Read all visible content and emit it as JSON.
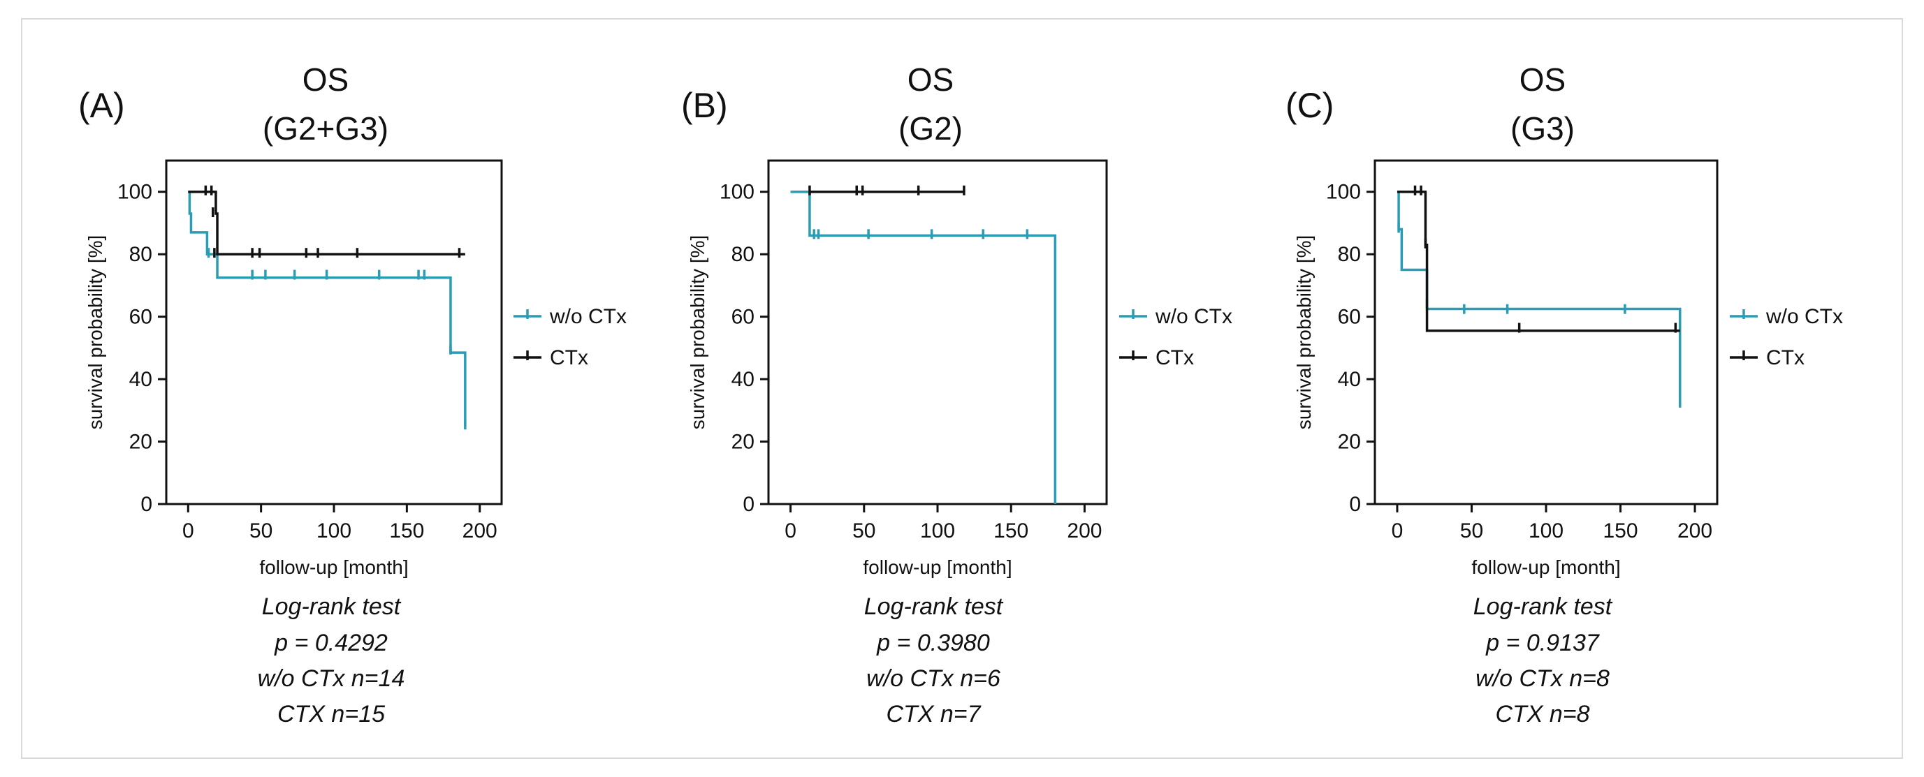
{
  "figure": {
    "border_color": "#d9d9d9"
  },
  "series_styles": {
    "w/o CTx": "#2a9db5",
    "CTx": "#111111"
  },
  "chart_data": [
    {
      "type": "line",
      "panel_label": "(A)",
      "title_lines": [
        "OS",
        "(G2+G3)"
      ],
      "xlabel": "follow-up [month]",
      "ylabel": "survival probability [%]",
      "xlim": [
        -15,
        215
      ],
      "ylim": [
        0,
        110
      ],
      "xticks": [
        0,
        50,
        100,
        150,
        200
      ],
      "yticks": [
        0,
        20,
        40,
        60,
        80,
        100
      ],
      "series": [
        {
          "name": "w/o CTx",
          "steps": [
            [
              0,
              100
            ],
            [
              1,
              93
            ],
            [
              2,
              87
            ],
            [
              13,
              80
            ],
            [
              20,
              72.5
            ],
            [
              180,
              48.5
            ],
            [
              190,
              25.5
            ]
          ],
          "censors": [
            [
              14,
              80
            ],
            [
              44,
              73
            ],
            [
              53,
              73
            ],
            [
              73,
              73
            ],
            [
              95,
              73
            ],
            [
              131,
              73
            ],
            [
              158,
              73
            ],
            [
              162,
              73
            ],
            [
              180,
              49
            ],
            [
              190,
              25
            ]
          ]
        },
        {
          "name": "CTx",
          "steps": [
            [
              0,
              100
            ],
            [
              19,
              93
            ],
            [
              20,
              80
            ],
            [
              190,
              80
            ]
          ],
          "censors": [
            [
              12,
              100
            ],
            [
              16,
              100
            ],
            [
              17,
              93
            ],
            [
              18,
              80
            ],
            [
              44,
              80
            ],
            [
              49,
              80
            ],
            [
              81,
              80
            ],
            [
              89,
              80
            ],
            [
              116,
              80
            ],
            [
              186,
              80
            ]
          ]
        }
      ],
      "legend": [
        "w/o CTx",
        "CTx"
      ],
      "stats": [
        "Log-rank test",
        "p = 0.4292",
        "w/o  CTx n=14",
        "CTX n=15"
      ]
    },
    {
      "type": "line",
      "panel_label": "(B)",
      "title_lines": [
        "OS",
        "(G2)"
      ],
      "xlabel": "follow-up [month]",
      "ylabel": "survival probability [%]",
      "xlim": [
        -15,
        215
      ],
      "ylim": [
        0,
        110
      ],
      "xticks": [
        0,
        50,
        100,
        150,
        200
      ],
      "yticks": [
        0,
        20,
        40,
        60,
        80,
        100
      ],
      "series": [
        {
          "name": "w/o CTx",
          "steps": [
            [
              0,
              100
            ],
            [
              13,
              86
            ],
            [
              180,
              0
            ]
          ],
          "censors": [
            [
              16,
              86
            ],
            [
              19,
              86
            ],
            [
              53,
              86
            ],
            [
              96,
              86
            ],
            [
              131,
              86
            ],
            [
              161,
              86
            ]
          ]
        },
        {
          "name": "CTx",
          "steps": [
            [
              13,
              100
            ],
            [
              118,
              100
            ]
          ],
          "censors": [
            [
              13,
              100
            ],
            [
              45,
              100
            ],
            [
              49,
              100
            ],
            [
              87,
              100
            ],
            [
              118,
              100
            ]
          ]
        }
      ],
      "legend": [
        "w/o CTx",
        "CTx"
      ],
      "stats": [
        "Log-rank test",
        "p = 0.3980",
        "w/o  CTx n=6",
        "CTX n=7"
      ]
    },
    {
      "type": "line",
      "panel_label": "(C)",
      "title_lines": [
        "OS",
        "(G3)"
      ],
      "xlabel": "follow-up [month]",
      "ylabel": "survival probability [%]",
      "xlim": [
        -15,
        215
      ],
      "ylim": [
        0,
        110
      ],
      "xticks": [
        0,
        50,
        100,
        150,
        200
      ],
      "yticks": [
        0,
        20,
        40,
        60,
        80,
        100
      ],
      "series": [
        {
          "name": "w/o CTx",
          "steps": [
            [
              0,
              100
            ],
            [
              1,
              88
            ],
            [
              3,
              75
            ],
            [
              20,
              62.5
            ],
            [
              190,
              32.5
            ]
          ],
          "censors": [
            [
              1,
              88
            ],
            [
              20,
              64
            ],
            [
              45,
              62
            ],
            [
              74,
              62
            ],
            [
              153,
              62
            ],
            [
              190,
              32
            ]
          ]
        },
        {
          "name": "CTx",
          "steps": [
            [
              0,
              100
            ],
            [
              19,
              83
            ],
            [
              20,
              55.5
            ],
            [
              190,
              55.5
            ]
          ],
          "censors": [
            [
              12,
              100
            ],
            [
              16,
              100
            ],
            [
              19,
              83
            ],
            [
              82,
              56
            ],
            [
              187,
              56
            ]
          ]
        }
      ],
      "legend": [
        "w/o CTx",
        "CTx"
      ],
      "stats": [
        "Log-rank test",
        "p = 0.9137",
        "w/o  CTx n=8",
        "CTX n=8"
      ]
    }
  ]
}
